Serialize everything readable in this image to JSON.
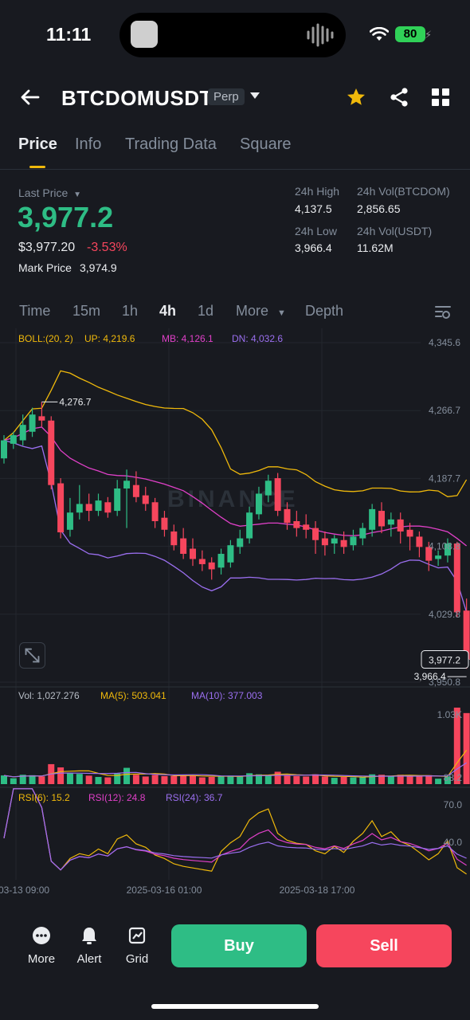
{
  "status_bar": {
    "time": "11:11",
    "battery": "80"
  },
  "header": {
    "symbol": "BTCDOMUSDT",
    "badge": "Perp"
  },
  "tabs": [
    {
      "label": "Price",
      "active": true
    },
    {
      "label": "Info",
      "active": false
    },
    {
      "label": "Trading Data",
      "active": false
    },
    {
      "label": "Square",
      "active": false
    }
  ],
  "summary": {
    "last_price_label": "Last Price",
    "last_price": "3,977.2",
    "usd_price": "$3,977.20",
    "change": "-3.53%",
    "mark_price_label": "Mark Price",
    "mark_price": "3,974.9",
    "stats": [
      {
        "label": "24h High",
        "value": "4,137.5"
      },
      {
        "label": "24h Vol(BTCDOM)",
        "value": "2,856.65"
      },
      {
        "label": "24h Low",
        "value": "3,966.4"
      },
      {
        "label": "24h Vol(USDT)",
        "value": "11.62M"
      }
    ]
  },
  "intervals": [
    {
      "label": "Time",
      "active": false
    },
    {
      "label": "15m",
      "active": false
    },
    {
      "label": "1h",
      "active": false
    },
    {
      "label": "4h",
      "active": true
    },
    {
      "label": "1d",
      "active": false
    },
    {
      "label": "More",
      "active": false
    },
    {
      "label": "Depth",
      "active": false
    }
  ],
  "colors": {
    "up": "#2ebd85",
    "down": "#f6465d",
    "yellow": "#f0b90b",
    "magenta": "#e040c8",
    "purple": "#9b6ff0",
    "bg": "#181a20"
  },
  "chart_data": {
    "type": "candlestick",
    "interval": "4h",
    "watermark": "BINANCE",
    "price_axis": [
      "4,345.6",
      "4,266.7",
      "4,187.7",
      "4,108.8",
      "4,029.8",
      "3,950.8"
    ],
    "ylim": [
      3950.8,
      4345.6
    ],
    "time_labels": [
      "03-13 09:00",
      "2025-03-16 01:00",
      "2025-03-18 17:00"
    ],
    "current_price_label": "3,977.2",
    "high_label": "4,276.7",
    "low_label": "3,966.4",
    "candles": [
      {
        "o": 4211,
        "h": 4238,
        "c": 4232,
        "l": 4205
      },
      {
        "o": 4228,
        "h": 4242,
        "c": 4238,
        "l": 4222
      },
      {
        "o": 4232,
        "h": 4262,
        "c": 4250,
        "l": 4226
      },
      {
        "o": 4242,
        "h": 4270,
        "c": 4262,
        "l": 4236
      },
      {
        "o": 4260,
        "h": 4276.7,
        "c": 4255,
        "l": 4248
      },
      {
        "o": 4255,
        "h": 4260,
        "c": 4180,
        "l": 4175
      },
      {
        "o": 4182,
        "h": 4188,
        "c": 4125,
        "l": 4118
      },
      {
        "o": 4128,
        "h": 4165,
        "c": 4148,
        "l": 4120
      },
      {
        "o": 4148,
        "h": 4180,
        "c": 4158,
        "l": 4140
      },
      {
        "o": 4158,
        "h": 4170,
        "c": 4150,
        "l": 4138
      },
      {
        "o": 4150,
        "h": 4170,
        "c": 4162,
        "l": 4144
      },
      {
        "o": 4160,
        "h": 4166,
        "c": 4148,
        "l": 4142
      },
      {
        "o": 4150,
        "h": 4186,
        "c": 4176,
        "l": 4144
      },
      {
        "o": 4176,
        "h": 4198,
        "c": 4185,
        "l": 4130
      },
      {
        "o": 4180,
        "h": 4196,
        "c": 4166,
        "l": 4160
      },
      {
        "o": 4168,
        "h": 4178,
        "c": 4158,
        "l": 4150
      },
      {
        "o": 4160,
        "h": 4165,
        "c": 4138,
        "l": 4130
      },
      {
        "o": 4142,
        "h": 4150,
        "c": 4128,
        "l": 4120
      },
      {
        "o": 4126,
        "h": 4134,
        "c": 4110,
        "l": 4104
      },
      {
        "o": 4118,
        "h": 4130,
        "c": 4100,
        "l": 4094
      },
      {
        "o": 4106,
        "h": 4118,
        "c": 4094,
        "l": 4086
      },
      {
        "o": 4094,
        "h": 4104,
        "c": 4088,
        "l": 4080
      },
      {
        "o": 4090,
        "h": 4096,
        "c": 4082,
        "l": 4070
      },
      {
        "o": 4084,
        "h": 4106,
        "c": 4100,
        "l": 4076
      },
      {
        "o": 4090,
        "h": 4116,
        "c": 4110,
        "l": 4084
      },
      {
        "o": 4108,
        "h": 4128,
        "c": 4118,
        "l": 4100
      },
      {
        "o": 4118,
        "h": 4155,
        "c": 4148,
        "l": 4112
      },
      {
        "o": 4146,
        "h": 4178,
        "c": 4170,
        "l": 4140
      },
      {
        "o": 4168,
        "h": 4192,
        "c": 4185,
        "l": 4160
      },
      {
        "o": 4188,
        "h": 4194,
        "c": 4150,
        "l": 4144
      },
      {
        "o": 4152,
        "h": 4160,
        "c": 4136,
        "l": 4128
      },
      {
        "o": 4138,
        "h": 4150,
        "c": 4130,
        "l": 4120
      },
      {
        "o": 4134,
        "h": 4146,
        "c": 4128,
        "l": 4118
      },
      {
        "o": 4130,
        "h": 4138,
        "c": 4116,
        "l": 4100
      },
      {
        "o": 4118,
        "h": 4126,
        "c": 4110,
        "l": 4098
      },
      {
        "o": 4112,
        "h": 4122,
        "c": 4118,
        "l": 4100
      },
      {
        "o": 4116,
        "h": 4126,
        "c": 4108,
        "l": 4100
      },
      {
        "o": 4110,
        "h": 4128,
        "c": 4120,
        "l": 4104
      },
      {
        "o": 4118,
        "h": 4136,
        "c": 4130,
        "l": 4110
      },
      {
        "o": 4128,
        "h": 4158,
        "c": 4152,
        "l": 4120
      },
      {
        "o": 4150,
        "h": 4160,
        "c": 4132,
        "l": 4124
      },
      {
        "o": 4134,
        "h": 4148,
        "c": 4140,
        "l": 4120
      },
      {
        "o": 4140,
        "h": 4148,
        "c": 4126,
        "l": 4112
      },
      {
        "o": 4128,
        "h": 4136,
        "c": 4120,
        "l": 4104
      },
      {
        "o": 4120,
        "h": 4126,
        "c": 4108,
        "l": 4096
      },
      {
        "o": 4108,
        "h": 4114,
        "c": 4092,
        "l": 4080
      },
      {
        "o": 4094,
        "h": 4104,
        "c": 4098,
        "l": 4086
      },
      {
        "o": 4098,
        "h": 4118,
        "c": 4112,
        "l": 4090
      },
      {
        "o": 4112,
        "h": 4114,
        "c": 4032,
        "l": 4026
      },
      {
        "o": 4034,
        "h": 4048,
        "c": 3977.2,
        "l": 3966.4
      }
    ],
    "indicators": {
      "boll": {
        "label": "BOLL:(20, 2)",
        "up": "UP: 4,219.6",
        "mb": "MB: 4,126.1",
        "dn": "DN: 4,032.6"
      },
      "vol": {
        "label": "Vol: 1,027.276",
        "ma5": "MA(5): 503.041",
        "ma10": "MA(10): 377.003",
        "axis": [
          "1.03K",
          "88.2"
        ]
      },
      "rsi": {
        "rsi6": "RSI(6): 15.2",
        "rsi12": "RSI(12): 24.8",
        "rsi24": "RSI(24): 36.7",
        "axis": [
          "70.0",
          "40.0"
        ]
      }
    }
  },
  "bottom_bar": {
    "more": "More",
    "alert": "Alert",
    "grid": "Grid",
    "buy": "Buy",
    "sell": "Sell"
  }
}
